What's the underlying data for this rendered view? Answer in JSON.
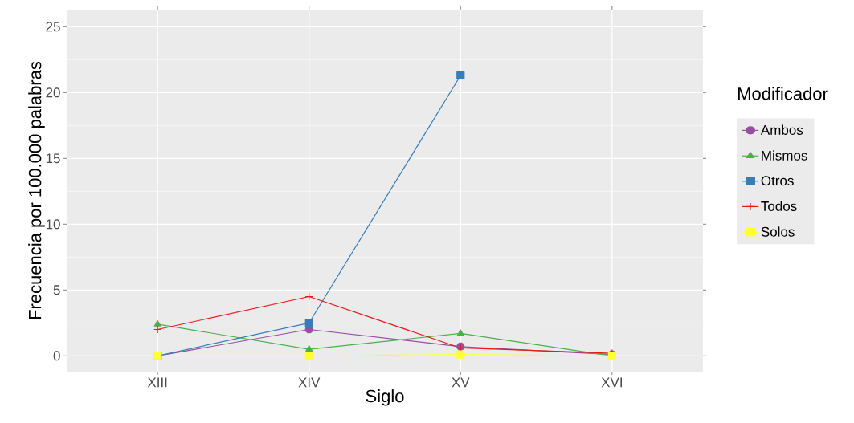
{
  "chart_data": {
    "type": "line",
    "xlabel": "Siglo",
    "ylabel": "Frecuencia por 100.000 palabras",
    "legend_title": "Modificador",
    "categories": [
      "XIII",
      "XIV",
      "XV",
      "XVI"
    ],
    "series": [
      {
        "name": "Ambos",
        "color": "#984ea3",
        "marker": "circle",
        "values": [
          0,
          2.0,
          0.7,
          0.1
        ]
      },
      {
        "name": "Mismos",
        "color": "#4daf4a",
        "marker": "triangle",
        "values": [
          2.4,
          0.5,
          1.7,
          0
        ]
      },
      {
        "name": "Otros",
        "color": "#377eb8",
        "marker": "square",
        "values": [
          0,
          2.5,
          21.3,
          null
        ]
      },
      {
        "name": "Todos",
        "color": "#e41a1c",
        "marker": "cross",
        "values": [
          2.0,
          4.5,
          0.6,
          0.2
        ]
      },
      {
        "name": "Solos",
        "color": "#ffff33",
        "marker": "square",
        "values": [
          0,
          0,
          0.1,
          0
        ]
      }
    ],
    "ylim": [
      -1.2,
      26.3
    ],
    "yticks": [
      0,
      5,
      10,
      15,
      20,
      25
    ],
    "grid": true,
    "legend": "right",
    "line_style": "solid"
  }
}
